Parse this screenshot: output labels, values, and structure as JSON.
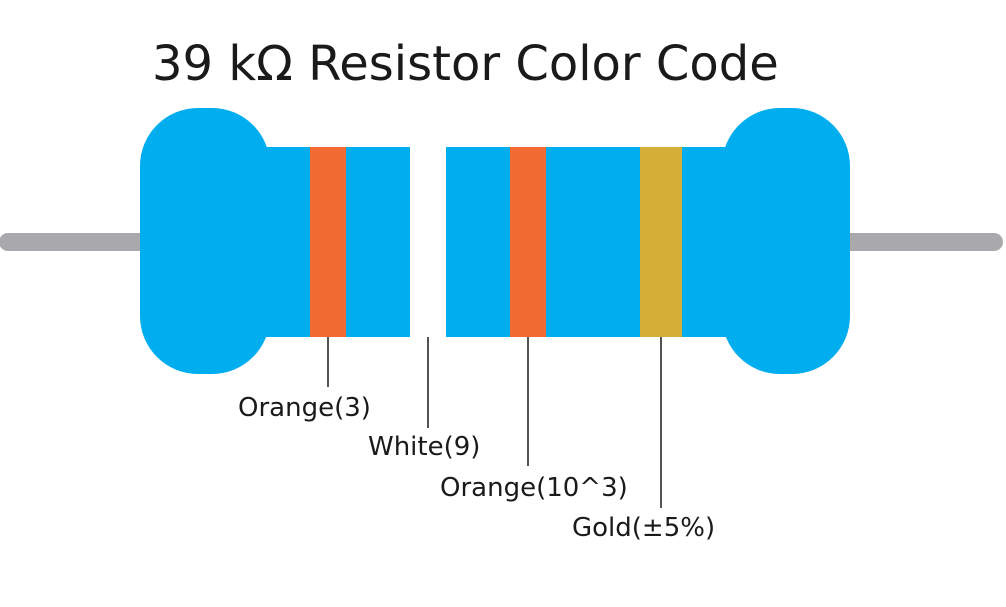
{
  "title": "39 kΩ Resistor Color Code",
  "colors": {
    "body": "#00aeef",
    "lead": "#a9a9ad",
    "leader_line": "#1a1a1a",
    "background": "#ffffff"
  },
  "bands": [
    {
      "name": "orange",
      "color": "#f26b33",
      "label": "Orange(3)"
    },
    {
      "name": "white",
      "color": "#ffffff",
      "label": "White(9)"
    },
    {
      "name": "orange",
      "color": "#f26b33",
      "label": "Orange(10^3)"
    },
    {
      "name": "gold",
      "color": "#d4af37",
      "label": "Gold(±5%)"
    }
  ]
}
